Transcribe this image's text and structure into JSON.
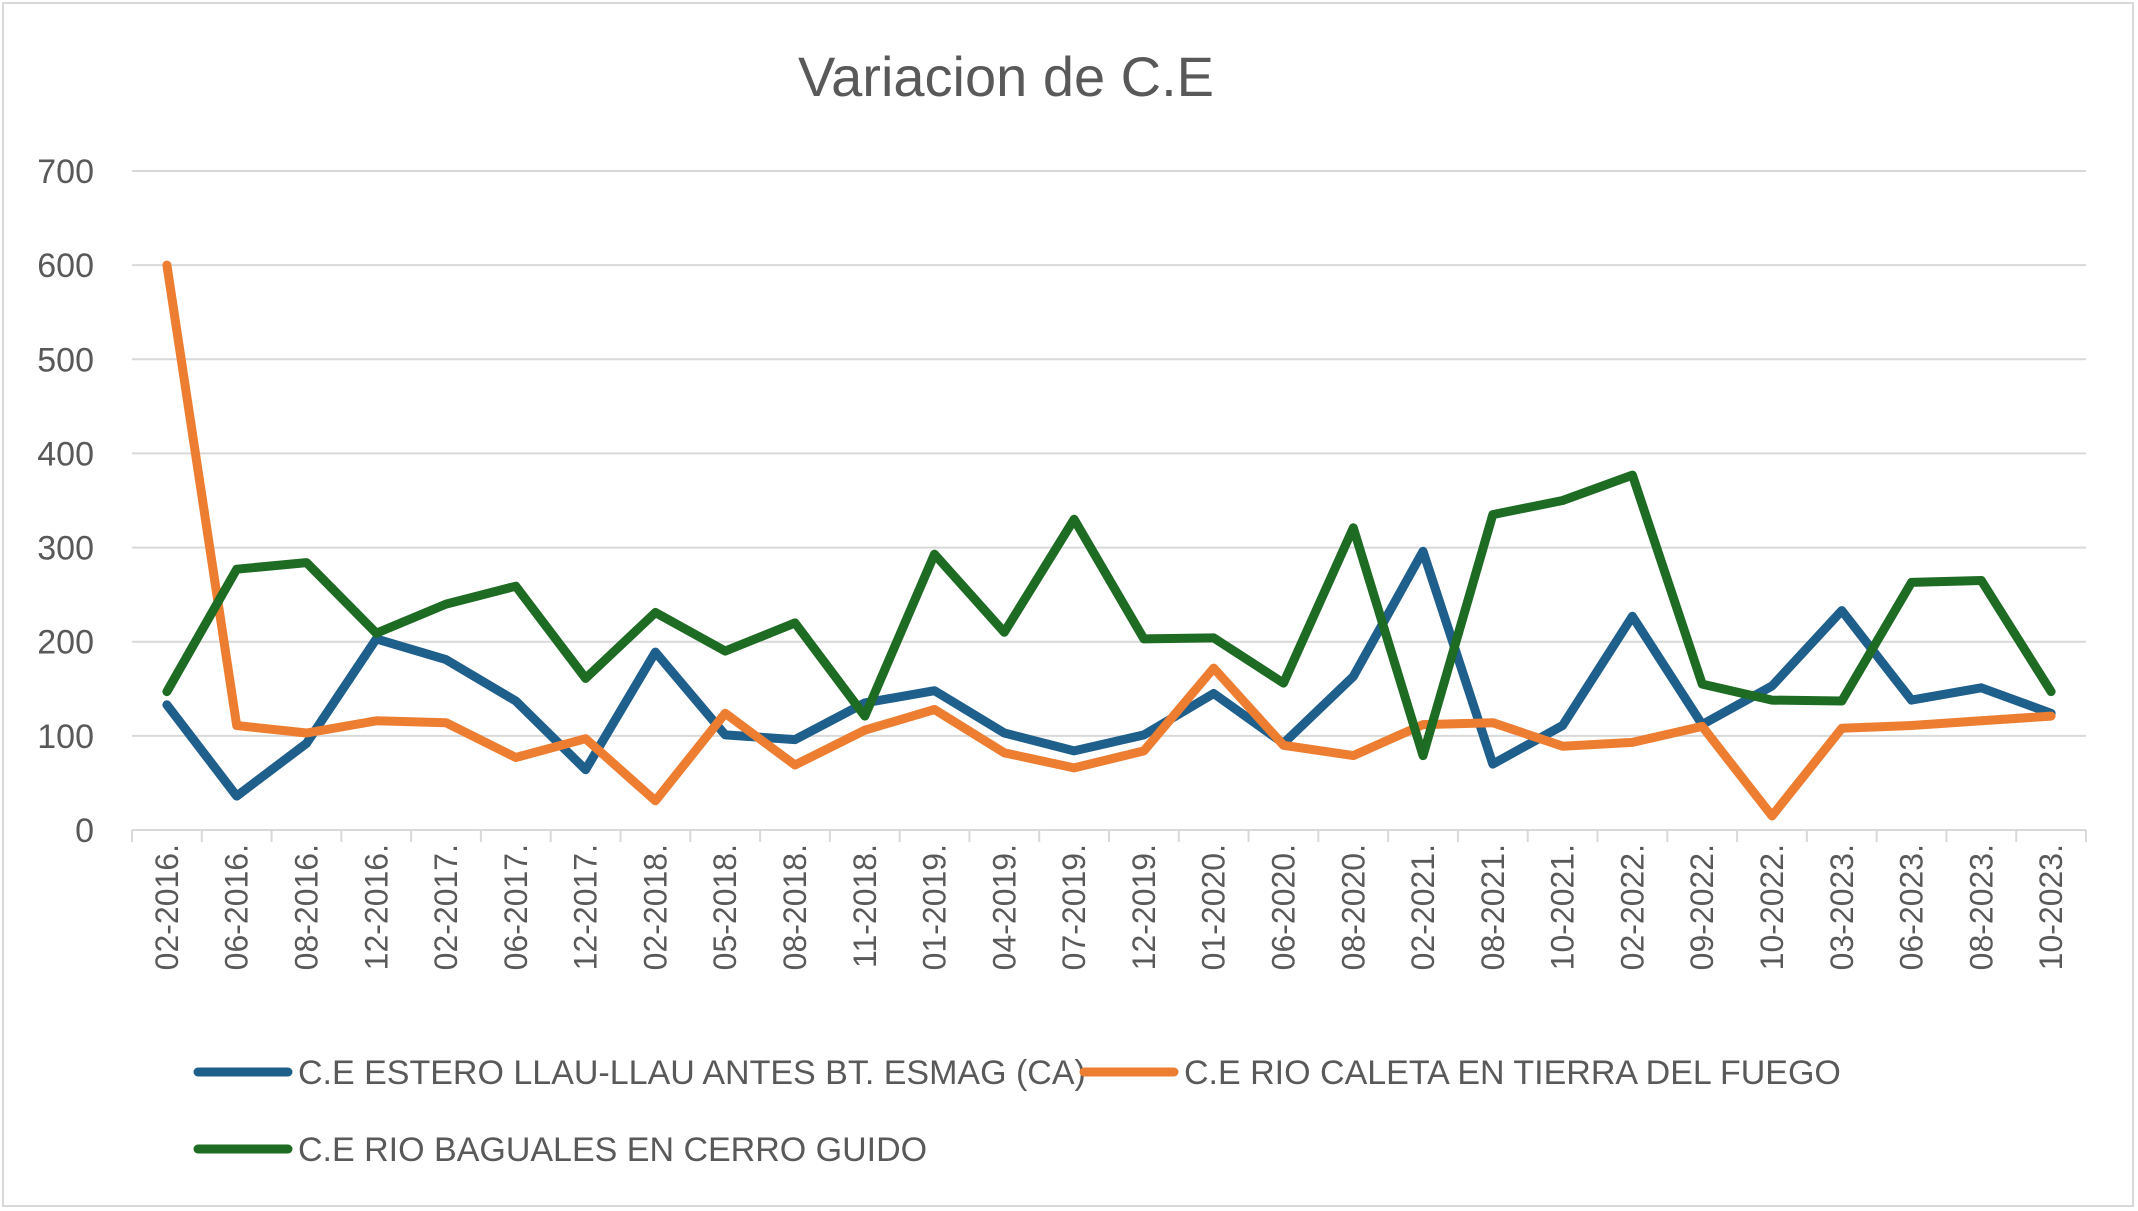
{
  "chart_data": {
    "type": "line",
    "title": "Variacion de C.E",
    "xlabel": "",
    "ylabel": "",
    "ylim": [
      0,
      700
    ],
    "yticks": [
      "0",
      "100",
      "200",
      "300",
      "400",
      "500",
      "600",
      "700"
    ],
    "grid": true,
    "legend_position": "bottom",
    "categories": [
      "02-2016.",
      "06-2016.",
      "08-2016.",
      "12-2016.",
      "02-2017.",
      "06-2017.",
      "12-2017.",
      "02-2018.",
      "05-2018.",
      "08-2018.",
      "11-2018.",
      "01-2019.",
      "04-2019.",
      "07-2019.",
      "12-2019.",
      "01-2020.",
      "06-2020.",
      "08-2020.",
      "02-2021.",
      "08-2021.",
      "10-2021.",
      "02-2022.",
      "09-2022.",
      "10-2022.",
      "03-2023.",
      "06-2023.",
      "08-2023.",
      "10-2023."
    ],
    "series": [
      {
        "name": "C.E ESTERO LLAU-LLAU ANTES BT. ESMAG (CA)",
        "color": "#1f5f8b",
        "values": [
          133,
          36,
          92,
          203,
          181,
          137,
          64,
          189,
          101,
          96,
          135,
          148,
          103,
          84,
          101,
          145,
          92,
          163,
          296,
          70,
          111,
          227,
          112,
          153,
          233,
          138,
          151,
          124
        ]
      },
      {
        "name": "C.E RIO CALETA EN TIERRA DEL FUEGO",
        "color": "#ed7d31",
        "values": [
          600,
          111,
          103,
          116,
          114,
          77,
          97,
          31,
          124,
          69,
          106,
          128,
          82,
          66,
          84,
          172,
          90,
          79,
          112,
          114,
          89,
          93,
          110,
          15,
          108,
          111,
          116,
          121
        ]
      },
      {
        "name": "C.E RIO BAGUALES EN CERRO GUIDO",
        "color": "#1e6b23",
        "values": [
          147,
          277,
          284,
          209,
          240,
          259,
          161,
          231,
          190,
          220,
          121,
          293,
          210,
          330,
          203,
          204,
          156,
          321,
          79,
          335,
          350,
          377,
          155,
          138,
          137,
          263,
          265,
          147
        ]
      }
    ]
  }
}
